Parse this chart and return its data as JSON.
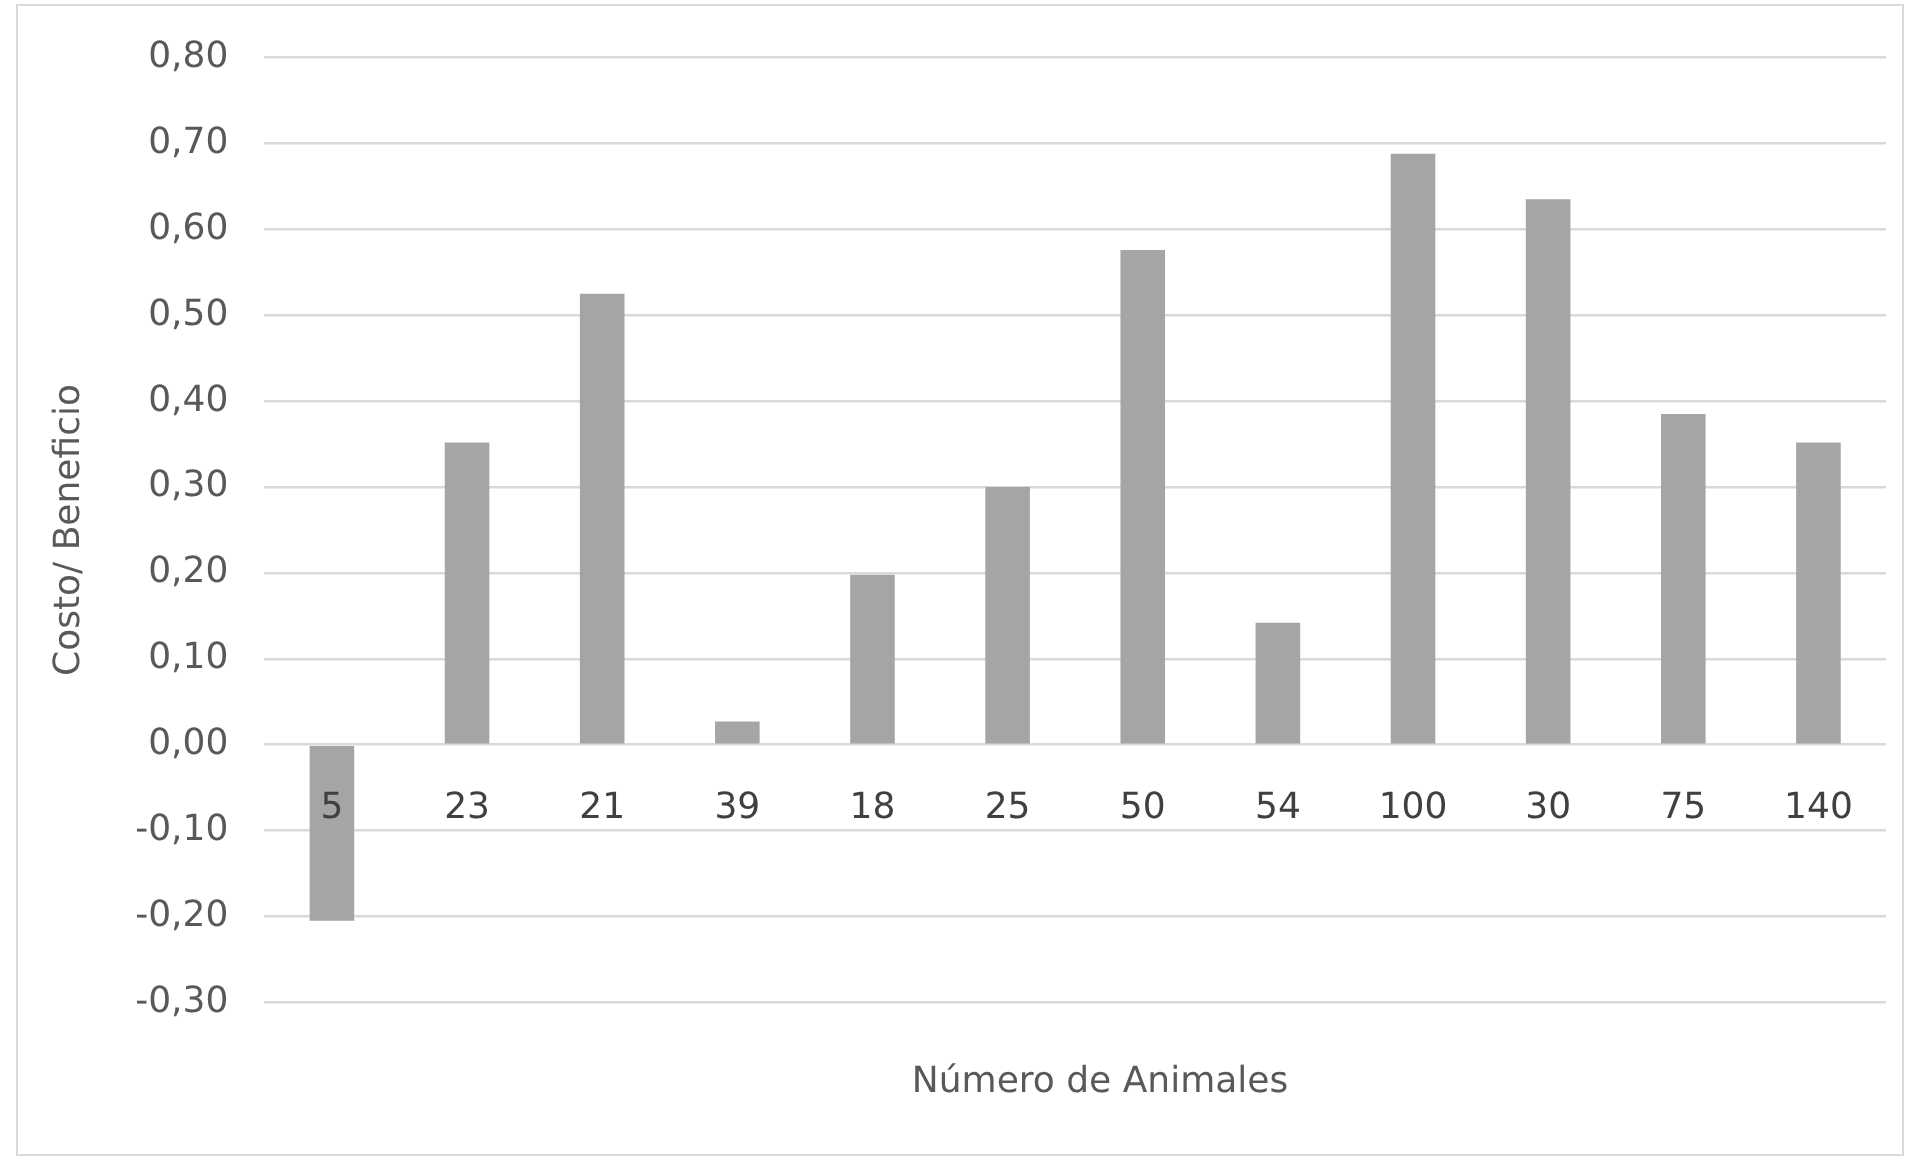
{
  "chart_data": {
    "type": "bar",
    "xlabel": "Número de Animales",
    "ylabel": "Costo/ Beneficio",
    "categories": [
      "5",
      "23",
      "21",
      "39",
      "18",
      "25",
      "50",
      "54",
      "100",
      "30",
      "75",
      "140"
    ],
    "values": [
      -0.205,
      0.352,
      0.525,
      0.027,
      0.198,
      0.3,
      0.576,
      0.142,
      0.688,
      0.635,
      0.385,
      0.352
    ],
    "color": "#a5a5a5",
    "ylim": [
      -0.3,
      0.8
    ],
    "yticks": [
      {
        "value": -0.3,
        "label": "-0,30"
      },
      {
        "value": -0.2,
        "label": "-0,20"
      },
      {
        "value": -0.1,
        "label": "-0,10"
      },
      {
        "value": 0,
        "label": "0,00"
      },
      {
        "value": 0.1,
        "label": "0,10"
      },
      {
        "value": 0.2,
        "label": "0,20"
      },
      {
        "value": 0.3,
        "label": "0,30"
      },
      {
        "value": 0.4,
        "label": "0,40"
      },
      {
        "value": 0.5,
        "label": "0,50"
      },
      {
        "value": 0.6,
        "label": "0,60"
      },
      {
        "value": 0.7,
        "label": "0,70"
      },
      {
        "value": 0.8,
        "label": "0,80"
      }
    ],
    "grid": "y",
    "legend": false
  }
}
